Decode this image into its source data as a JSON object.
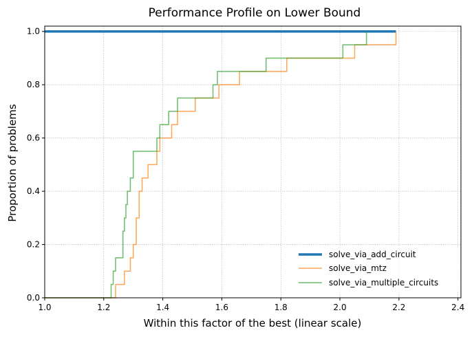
{
  "chart_data": {
    "type": "line",
    "title": "Performance Profile on Lower Bound",
    "xlabel": "Within this factor of the best (linear scale)",
    "ylabel": "Proportion of problems",
    "xlim": [
      1.0,
      2.41
    ],
    "ylim": [
      0.0,
      1.02
    ],
    "xticks": [
      "1.0",
      "1.2",
      "1.4",
      "1.6",
      "1.8",
      "2.0",
      "2.2",
      "2.4"
    ],
    "yticks": [
      "0.0",
      "0.2",
      "0.4",
      "0.6",
      "0.8",
      "1.0"
    ],
    "grid": true,
    "legend_position": "lower-right",
    "series": [
      {
        "name": "solve_via_add_circuit",
        "color": "#1f77b4",
        "x": [
          1.0,
          2.19
        ],
        "y": [
          1.0,
          1.0
        ]
      },
      {
        "name": "solve_via_mtz",
        "color": "#ff7f0e",
        "x": [
          1.0,
          1.24,
          1.27,
          1.29,
          1.3,
          1.31,
          1.32,
          1.33,
          1.35,
          1.38,
          1.39,
          1.43,
          1.45,
          1.51,
          1.59,
          1.66,
          1.82,
          2.05,
          2.19
        ],
        "y": [
          0.0,
          0.05,
          0.1,
          0.15,
          0.2,
          0.3,
          0.4,
          0.45,
          0.5,
          0.55,
          0.6,
          0.65,
          0.7,
          0.75,
          0.8,
          0.85,
          0.9,
          0.95,
          1.0
        ]
      },
      {
        "name": "solve_via_multiple_circuits",
        "color": "#2ca02c",
        "x": [
          1.0,
          1.225,
          1.232,
          1.24,
          1.265,
          1.27,
          1.275,
          1.28,
          1.29,
          1.3,
          1.38,
          1.39,
          1.42,
          1.45,
          1.57,
          1.585,
          1.75,
          2.01,
          2.09
        ],
        "y": [
          0.0,
          0.05,
          0.1,
          0.15,
          0.25,
          0.3,
          0.35,
          0.4,
          0.45,
          0.55,
          0.6,
          0.65,
          0.7,
          0.75,
          0.8,
          0.85,
          0.9,
          0.95,
          1.0
        ]
      }
    ]
  }
}
